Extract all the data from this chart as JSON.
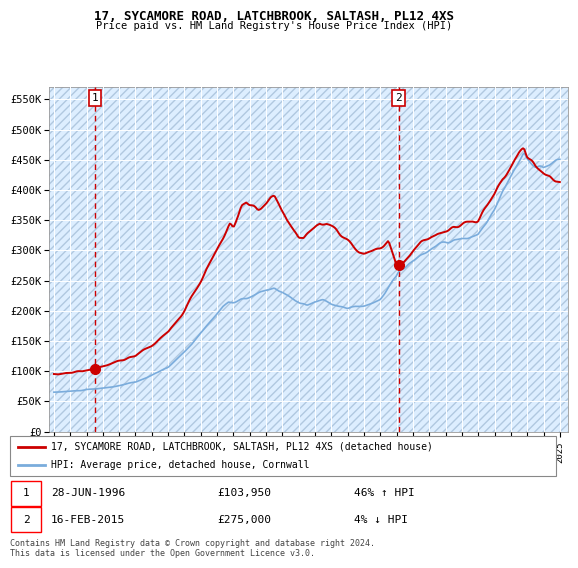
{
  "title1": "17, SYCAMORE ROAD, LATCHBROOK, SALTASH, PL12 4XS",
  "title2": "Price paid vs. HM Land Registry's House Price Index (HPI)",
  "legend_line1": "17, SYCAMORE ROAD, LATCHBROOK, SALTASH, PL12 4XS (detached house)",
  "legend_line2": "HPI: Average price, detached house, Cornwall",
  "marker1_date": "28-JUN-1996",
  "marker1_price": "£103,950",
  "marker1_hpi": "46% ↑ HPI",
  "marker2_date": "16-FEB-2015",
  "marker2_price": "£275,000",
  "marker2_hpi": "4% ↓ HPI",
  "copyright": "Contains HM Land Registry data © Crown copyright and database right 2024.\nThis data is licensed under the Open Government Licence v3.0.",
  "price_color": "#cc0000",
  "hpi_color": "#7aacdc",
  "marker_color": "#cc0000",
  "vline_color": "#cc0000",
  "marker1_x": 1996.5,
  "marker1_y": 103950,
  "marker2_x": 2015.12,
  "marker2_y": 275000,
  "vline1_x": 1996.5,
  "vline2_x": 2015.12,
  "ylim": [
    0,
    570000
  ],
  "xlim": [
    1993.7,
    2025.5
  ],
  "yticks": [
    0,
    50000,
    100000,
    150000,
    200000,
    250000,
    300000,
    350000,
    400000,
    450000,
    500000,
    550000
  ]
}
